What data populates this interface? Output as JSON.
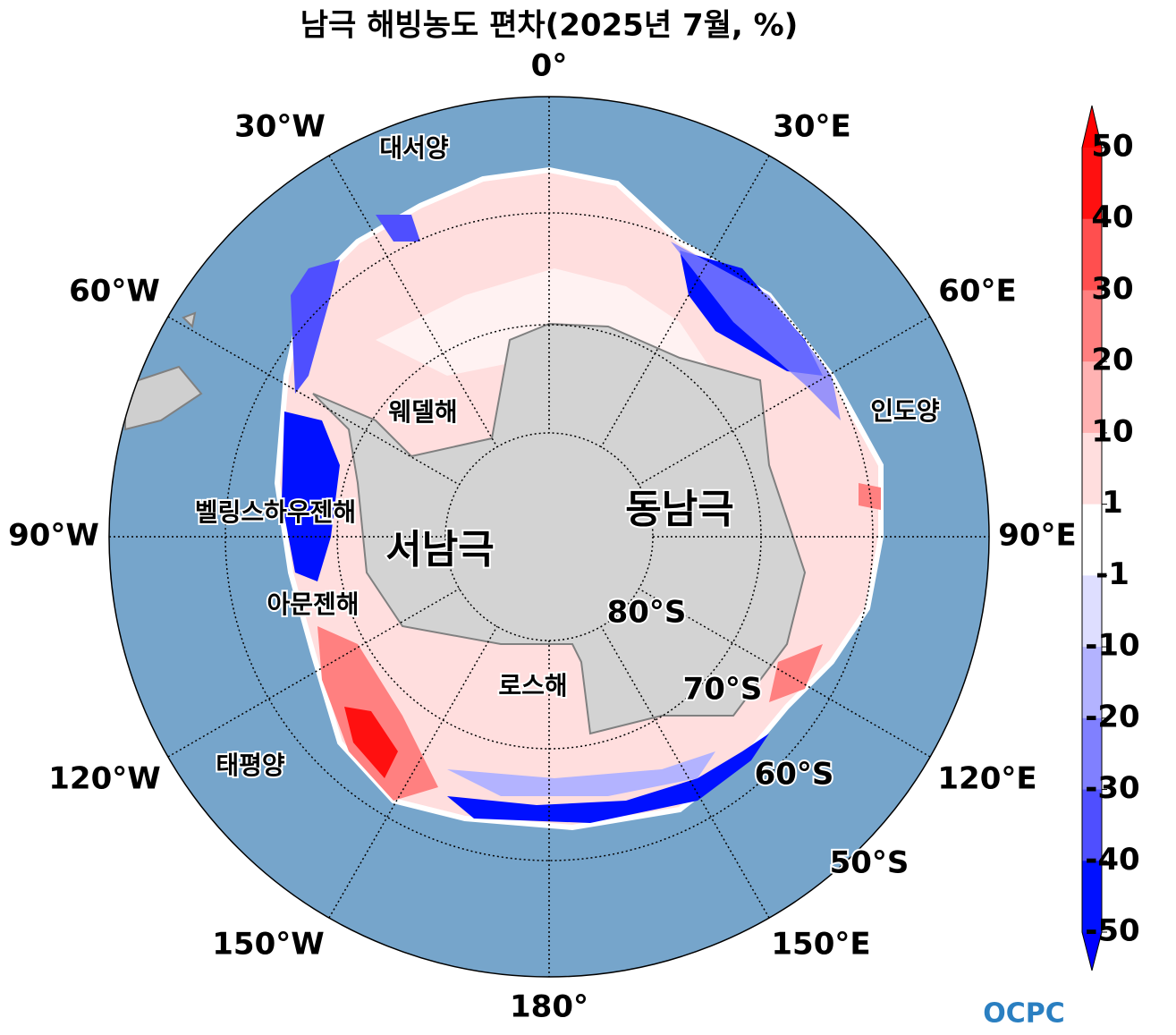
{
  "title": "남극 해빙농도 편차(2025년 7월, %)",
  "lon_labels": [
    "0°",
    "30°E",
    "60°E",
    "90°E",
    "120°E",
    "150°E",
    "180°",
    "150°W",
    "120°W",
    "90°W",
    "60°W",
    "30°W"
  ],
  "lat_labels": [
    "80°S",
    "70°S",
    "60°S",
    "50°S"
  ],
  "regions": [
    "대서양",
    "인도양",
    "웨델해",
    "벨링스하우젠해",
    "아문젠해",
    "로스해",
    "태평양",
    "동남극",
    "서남극"
  ],
  "colorbar": {
    "ticks": [
      50,
      40,
      30,
      20,
      10,
      1,
      -1,
      -10,
      -20,
      -30,
      -40,
      -50
    ],
    "colors": [
      "#ff1010",
      "#ff4f4f",
      "#ff8080",
      "#ffb3b3",
      "#ffdede",
      "#ffffff",
      "#dedeff",
      "#b3b3ff",
      "#8080ff",
      "#4f4fff",
      "#0010ff"
    ],
    "extend_colors": [
      "#ff0000",
      "#0000ff"
    ]
  },
  "logo": "OCPC"
}
